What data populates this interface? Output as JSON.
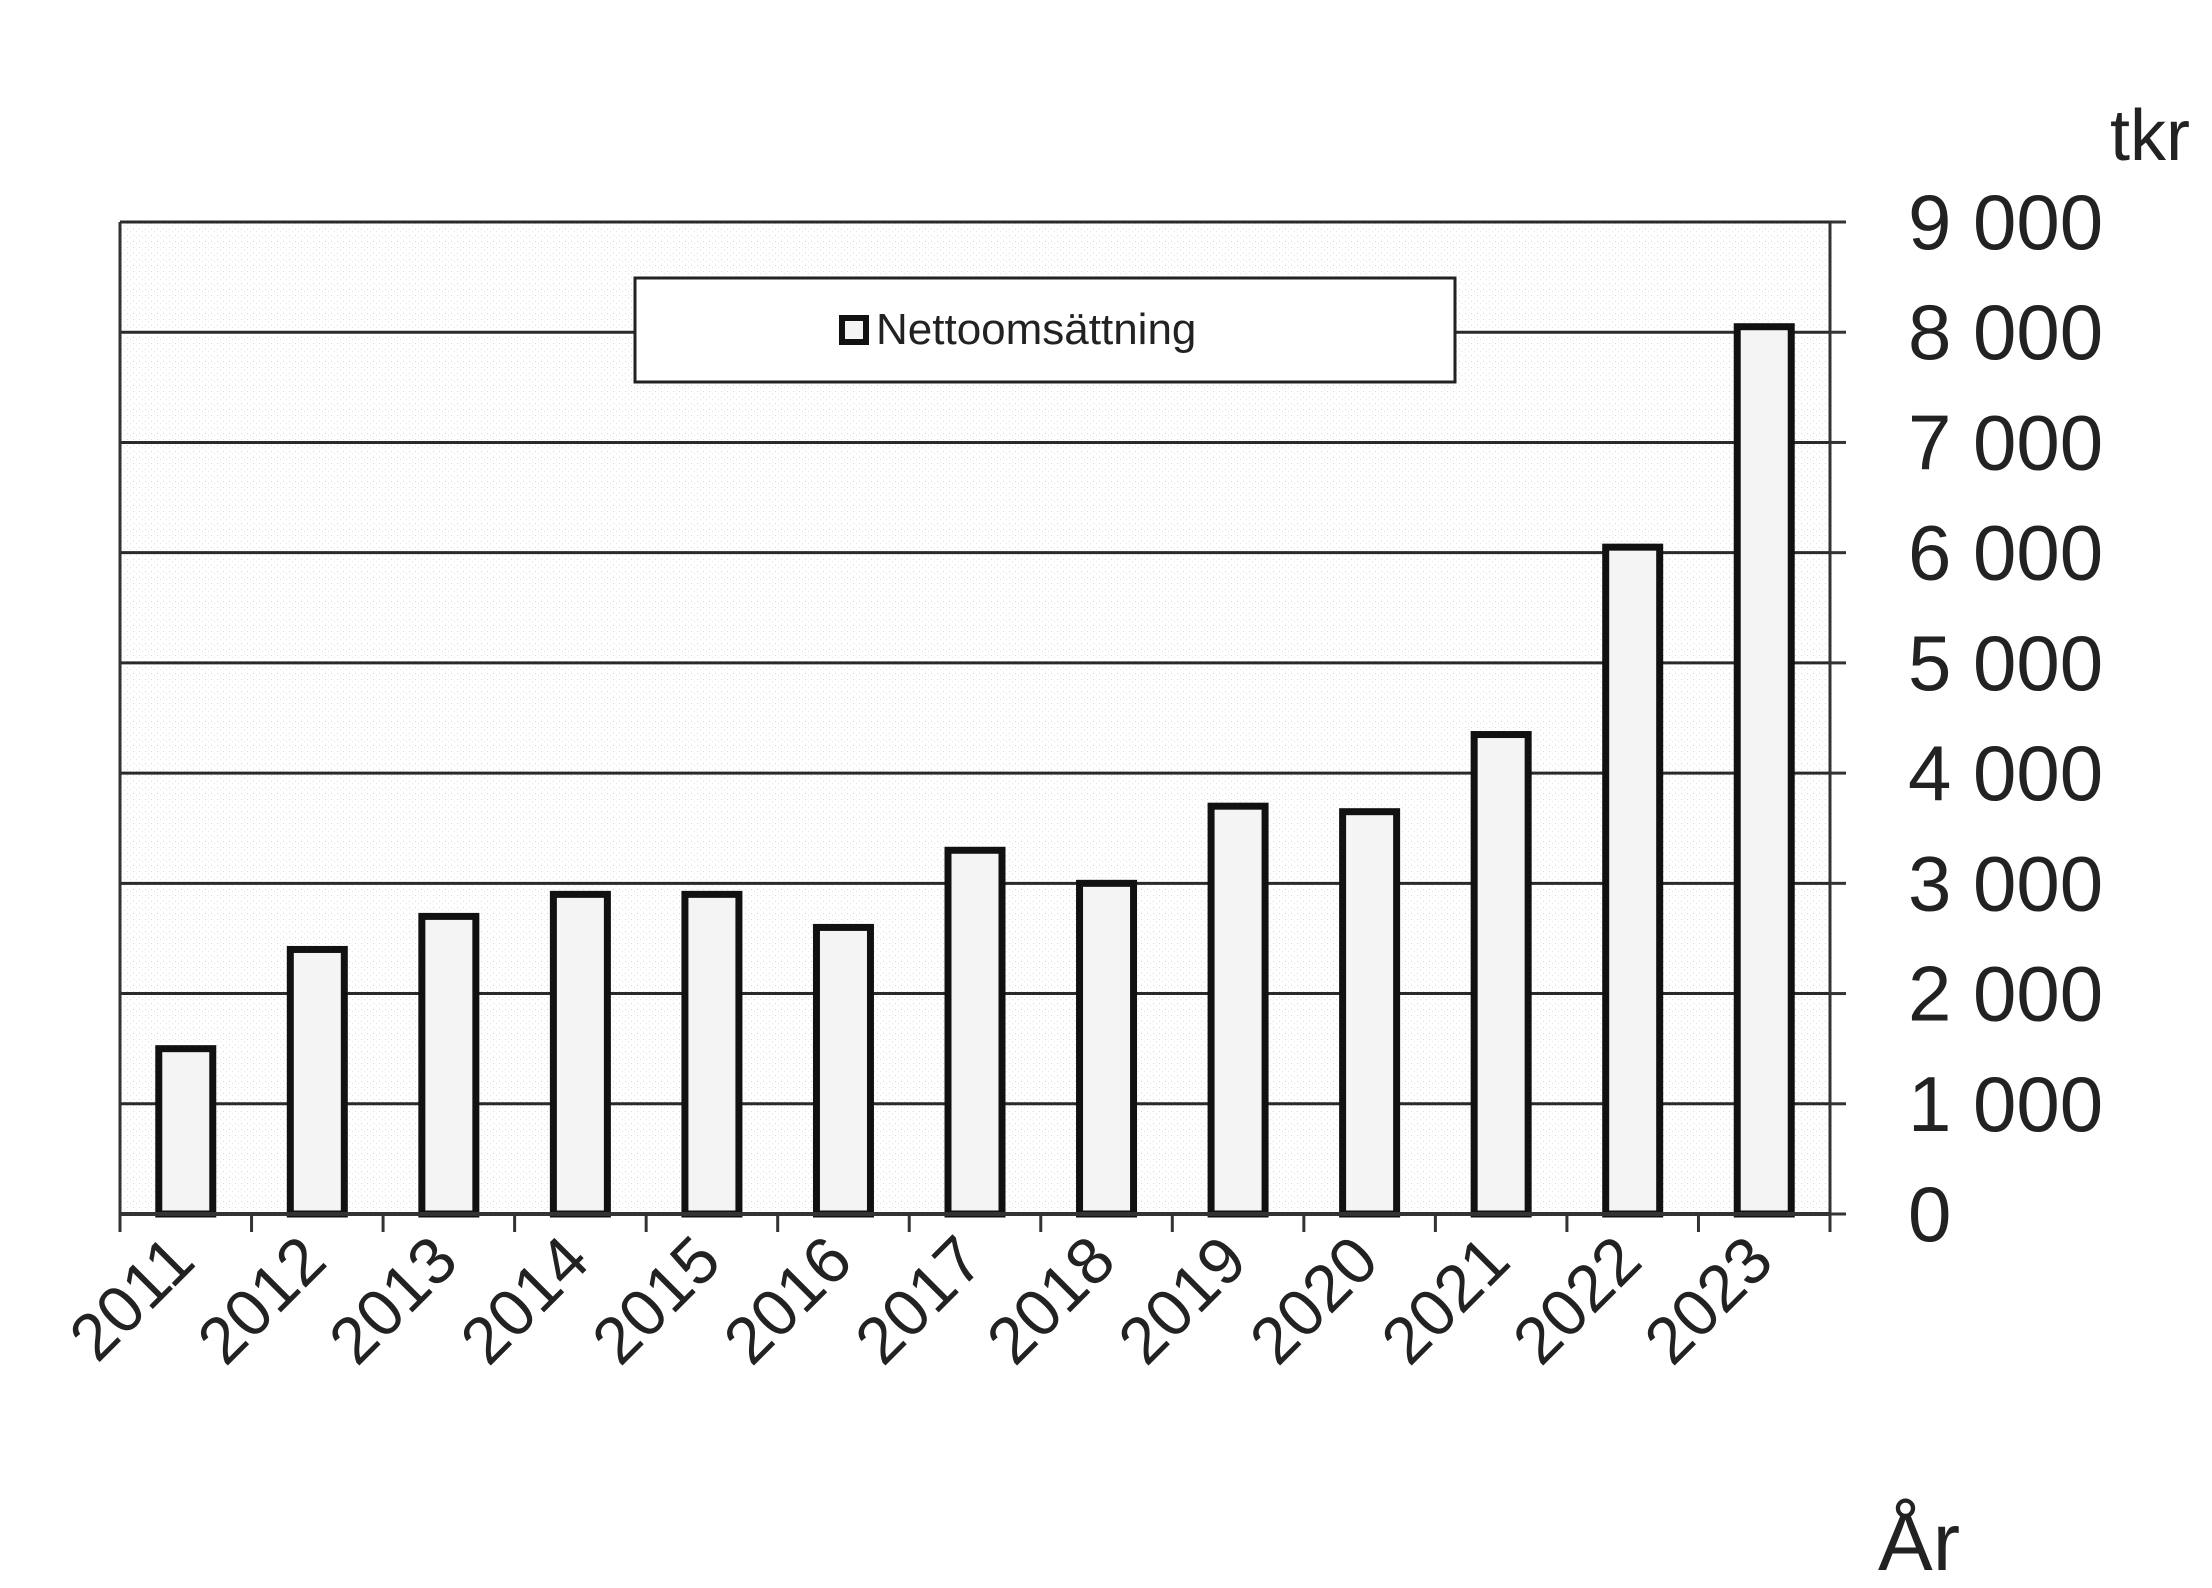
{
  "chart_data": {
    "type": "bar",
    "categories": [
      "2011",
      "2012",
      "2013",
      "2014",
      "2015",
      "2016",
      "2017",
      "2018",
      "2019",
      "2020",
      "2021",
      "2022",
      "2023"
    ],
    "series": [
      {
        "name": "Nettoomsättning",
        "values": [
          1500,
          2400,
          2700,
          2900,
          2900,
          2600,
          3300,
          3000,
          3700,
          3650,
          4350,
          6050,
          8050
        ]
      }
    ],
    "ylabel": "tkr",
    "xlabel": "År",
    "ylim": [
      0,
      9000
    ],
    "yticks": [
      0,
      1000,
      2000,
      3000,
      4000,
      5000,
      6000,
      7000,
      8000,
      9000
    ],
    "ytick_labels": [
      "0",
      "1 000",
      "2 000",
      "3 000",
      "4 000",
      "5 000",
      "6 000",
      "7 000",
      "8 000",
      "9 000"
    ],
    "y_axis_position": "right",
    "grid": true,
    "legend_position": "top-center",
    "colors": {
      "bar_fill": "#f4f4f4",
      "bar_stroke": "#111111",
      "grid": "#2a2a2a",
      "axis": "#333333"
    }
  }
}
